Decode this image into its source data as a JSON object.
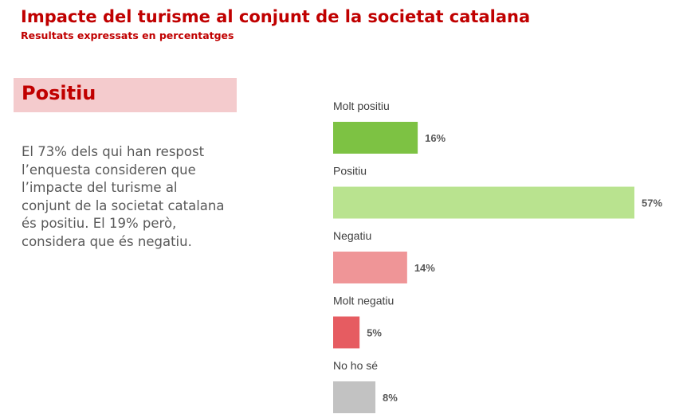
{
  "header": {
    "title": "Impacte del turisme al conjunt de la societat catalana",
    "subtitle": "Resultats expressats en percentatges"
  },
  "section": {
    "label": "Positiu",
    "description": "El 73% dels qui han respost l’enquesta consideren que l’impacte del turisme al conjunt de la societat catalana és positiu. El 19% però, considera que és negatiu."
  },
  "chart_data": {
    "type": "bar",
    "orientation": "horizontal",
    "categories": [
      "Molt positiu",
      "Positiu",
      "Negatiu",
      "Molt negatiu",
      "No ho sé"
    ],
    "values": [
      16,
      57,
      14,
      5,
      8
    ],
    "value_labels": [
      "16%",
      "57%",
      "14%",
      "5%",
      "8%"
    ],
    "colors": [
      "#7dc243",
      "#b9e38f",
      "#ef9597",
      "#e65c61",
      "#c2c2c2"
    ],
    "xlim": [
      0,
      57
    ],
    "grid": false,
    "legend": "none"
  }
}
